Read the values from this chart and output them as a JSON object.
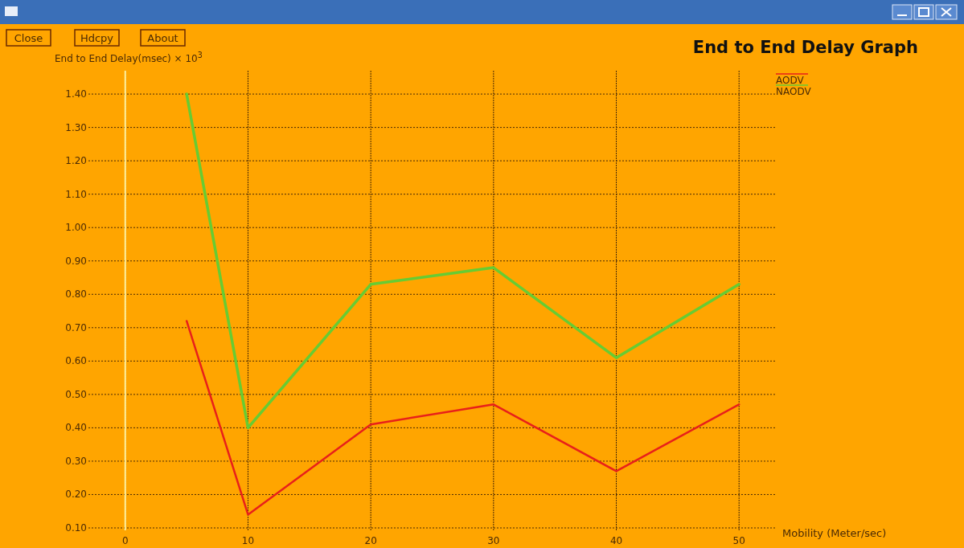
{
  "chart_data": {
    "type": "line",
    "title": "End to End Delay Graph",
    "ylabel": "End to End Delay(msec) × 10$^{3}$",
    "xlabel": "Mobility (Meter/sec)",
    "x": [
      5,
      10,
      20,
      30,
      40,
      50
    ],
    "series": [
      {
        "name": "AODV",
        "color": "#e8201a",
        "values": [
          0.72,
          0.14,
          0.41,
          0.47,
          0.27,
          0.47
        ]
      },
      {
        "name": "NAODV",
        "color": "#66cc33",
        "values": [
          1.4,
          0.4,
          0.83,
          0.88,
          0.61,
          0.83
        ]
      }
    ],
    "xlim": [
      -3,
      53
    ],
    "xticks": [
      0,
      10,
      20,
      30,
      40,
      50
    ],
    "ylim": [
      0.1,
      1.47
    ],
    "yticks": [
      {
        "value": 0.1,
        "label": "0.10"
      },
      {
        "value": 0.2,
        "label": "0.20"
      },
      {
        "value": 0.3,
        "label": "0.30"
      },
      {
        "value": 0.4,
        "label": "0.40"
      },
      {
        "value": 0.5,
        "label": "0.50"
      },
      {
        "value": 0.6,
        "label": "0.60"
      },
      {
        "value": 0.7,
        "label": "0.70"
      },
      {
        "value": 0.8,
        "label": "0.80"
      },
      {
        "value": 0.9,
        "label": "0.90"
      },
      {
        "value": 1.0,
        "label": "1.00"
      },
      {
        "value": 1.1,
        "label": "1.10"
      },
      {
        "value": 1.2,
        "label": "1.20"
      },
      {
        "value": 1.3,
        "label": "1.30"
      },
      {
        "value": 1.4,
        "label": "1.40"
      }
    ],
    "ref_lines": [
      {
        "axis": "x",
        "value": 0,
        "color": "#fff2a0"
      }
    ],
    "annotations": [
      "Close",
      "Hdcpy",
      "About"
    ],
    "grid": true,
    "legend": "top right",
    "marker": "none",
    "line_style": "solid"
  }
}
